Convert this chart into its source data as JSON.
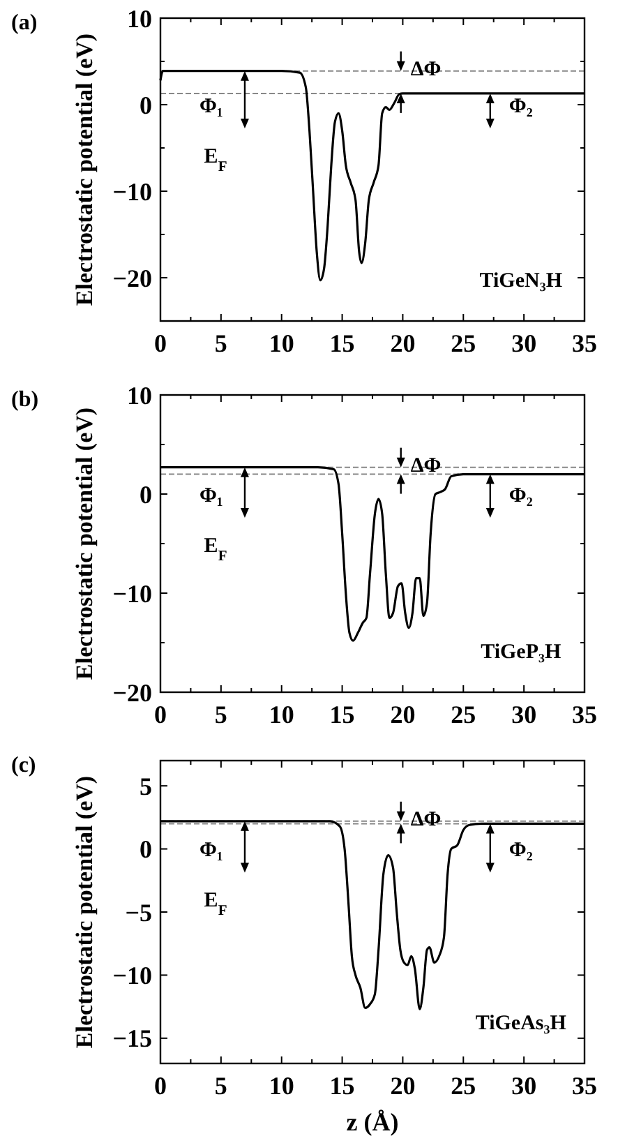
{
  "chart_data": [
    {
      "type": "line",
      "title": "(a)",
      "ylabel": "Electrostatic potential (eV)",
      "xlim": [
        0,
        35
      ],
      "ylim": [
        -25,
        10
      ],
      "xticks": [
        0,
        {
          "value": 2.5,
          "label": null
        },
        5,
        {
          "value": 7.5,
          "label": null
        },
        10,
        {
          "value": 12.5,
          "label": null
        },
        15,
        {
          "value": 17.5,
          "label": null
        },
        20,
        {
          "value": 22.5,
          "label": null
        },
        25,
        {
          "value": 27.5,
          "label": null
        },
        30,
        {
          "value": 32.5,
          "label": null
        },
        35
      ],
      "yticks": [
        {
          "value": -25,
          "label": null
        },
        -20,
        {
          "value": -15,
          "label": null
        },
        -10,
        {
          "value": -5,
          "label": null
        },
        0,
        {
          "value": 5,
          "label": null
        },
        10
      ],
      "series": [
        {
          "color": "#000000",
          "x": [
            0,
            0.2,
            5,
            10,
            11.5,
            12,
            12.3,
            12.6,
            12.9,
            13.2,
            13.5,
            13.8,
            14.1,
            14.4,
            14.7,
            15,
            15.3,
            15.7,
            16.1,
            16.4,
            16.6,
            16.9,
            17.2,
            17.6,
            18,
            18.3,
            18.6,
            18.9,
            19.3,
            19.7,
            20,
            35
          ],
          "values": [
            2.8,
            3.9,
            3.9,
            3.9,
            3.7,
            2,
            -3,
            -10,
            -17,
            -20.3,
            -19,
            -14,
            -7,
            -2,
            -1,
            -3,
            -7,
            -9,
            -11,
            -17,
            -18.3,
            -16,
            -11,
            -9,
            -7,
            -1,
            -0.3,
            -0.6,
            0.2,
            1.2,
            1.3,
            1.3
          ]
        }
      ],
      "ref_lines": [
        {
          "axis": "y",
          "value": 3.9,
          "color": "#888888",
          "line_style": "dashed"
        },
        {
          "axis": "y",
          "value": 1.3,
          "color": "#888888",
          "line_style": "dashed"
        }
      ],
      "annotations": [
        "Φ₁",
        "E$_{F}$",
        "ΔΦ",
        "Φ₂",
        "TiGeN₃H"
      ]
    },
    {
      "type": "line",
      "title": "(b)",
      "ylabel": "Electrostatic potential (eV)",
      "xlim": [
        0,
        35
      ],
      "ylim": [
        -20,
        10
      ],
      "xticks": [
        0,
        {
          "value": 2.5,
          "label": null
        },
        5,
        {
          "value": 7.5,
          "label": null
        },
        10,
        {
          "value": 12.5,
          "label": null
        },
        15,
        {
          "value": 17.5,
          "label": null
        },
        20,
        {
          "value": 22.5,
          "label": null
        },
        25,
        {
          "value": 27.5,
          "label": null
        },
        30,
        {
          "value": 32.5,
          "label": null
        },
        35
      ],
      "yticks": [
        -20,
        {
          "value": -15,
          "label": null
        },
        -10,
        {
          "value": -5,
          "label": null
        },
        0,
        {
          "value": 5,
          "label": null
        },
        10
      ],
      "series": [
        {
          "color": "#000000",
          "x": [
            0,
            13,
            14.3,
            14.7,
            15,
            15.3,
            15.6,
            15.9,
            16.3,
            16.7,
            17,
            17.3,
            17.7,
            18,
            18.3,
            18.6,
            18.9,
            19.2,
            19.6,
            19.9,
            20.2,
            20.5,
            20.8,
            21.1,
            21.4,
            21.7,
            22,
            22.3,
            22.7,
            23.1,
            23.5,
            24,
            25,
            35
          ],
          "values": [
            2.7,
            2.7,
            2.5,
            1,
            -4,
            -10,
            -14,
            -14.8,
            -14,
            -13,
            -12.5,
            -8,
            -2,
            -0.5,
            -2,
            -8,
            -12.5,
            -12,
            -9.3,
            -9,
            -12,
            -13.5,
            -12,
            -8.5,
            -8.5,
            -12.3,
            -11,
            -4,
            0,
            0.2,
            0.5,
            1.8,
            2,
            2
          ]
        }
      ],
      "ref_lines": [
        {
          "axis": "y",
          "value": 2.7,
          "color": "#888888",
          "line_style": "dashed"
        },
        {
          "axis": "y",
          "value": 2,
          "color": "#888888",
          "line_style": "dashed"
        }
      ],
      "annotations": [
        "Φ₁",
        "E$_{F}$",
        "ΔΦ",
        "Φ₂",
        "TiGeP₃H"
      ]
    },
    {
      "type": "line",
      "title": "(c)",
      "ylabel": "Electrostatic potential (eV)",
      "xlabel": "z (Å)",
      "xlim": [
        0,
        35
      ],
      "ylim": [
        -17,
        7
      ],
      "xticks": [
        0,
        {
          "value": 2.5,
          "label": null
        },
        5,
        {
          "value": 7.5,
          "label": null
        },
        10,
        {
          "value": 12.5,
          "label": null
        },
        15,
        {
          "value": 17.5,
          "label": null
        },
        20,
        {
          "value": 22.5,
          "label": null
        },
        25,
        {
          "value": 27.5,
          "label": null
        },
        30,
        {
          "value": 32.5,
          "label": null
        },
        35
      ],
      "yticks": [
        -15,
        -10,
        -5,
        0,
        5
      ],
      "series": [
        {
          "color": "#000000",
          "x": [
            0,
            14,
            14.8,
            15.2,
            15.5,
            15.8,
            16.1,
            16.5,
            16.9,
            17.3,
            17.7,
            18,
            18.4,
            18.8,
            19.2,
            19.5,
            19.8,
            20.1,
            20.4,
            20.7,
            21,
            21.4,
            21.7,
            22,
            22.2,
            22.6,
            23,
            23.4,
            23.7,
            24,
            24.5,
            25,
            25.5,
            26.5,
            35
          ],
          "values": [
            2.2,
            2.2,
            1.8,
            0,
            -4,
            -8.5,
            -10,
            -11,
            -12.6,
            -12.3,
            -11.5,
            -8,
            -2,
            -0.5,
            -1.5,
            -5,
            -8,
            -9,
            -9.2,
            -8.5,
            -9.5,
            -12.7,
            -11,
            -8,
            -7.8,
            -9,
            -8.5,
            -7,
            -2,
            0,
            0.3,
            1.5,
            1.9,
            2,
            2
          ]
        }
      ],
      "ref_lines": [
        {
          "axis": "y",
          "value": 2.2,
          "color": "#888888",
          "line_style": "dashed"
        },
        {
          "axis": "y",
          "value": 2,
          "color": "#888888",
          "line_style": "dashed"
        }
      ],
      "annotations": [
        "Φ₁",
        "E$_{F}$",
        "ΔΦ",
        "Φ₂",
        "TiGeAs₃H"
      ]
    }
  ]
}
